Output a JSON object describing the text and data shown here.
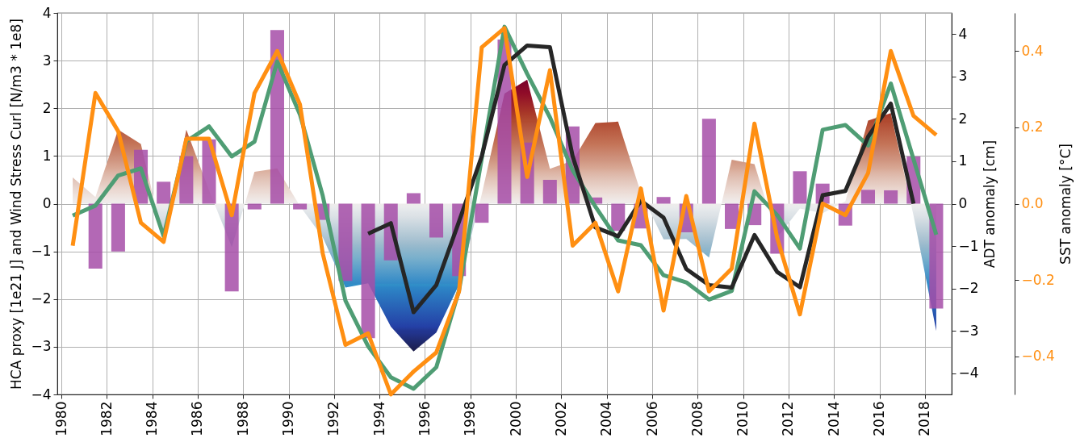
{
  "chart_data": {
    "type": "line",
    "ylabel": "HCA proxy [1e21 J] and Wind Stress Curl [N/m3 * 1e8]",
    "y2label": "ADT anomaly [cm]",
    "y3label": "SST anomaly [°C]",
    "x": [
      1980.5,
      1981.5,
      1982.5,
      1983.5,
      1984.5,
      1985.5,
      1986.5,
      1987.5,
      1988.5,
      1989.5,
      1990.5,
      1991.5,
      1992.5,
      1993.5,
      1994.5,
      1995.5,
      1996.5,
      1997.5,
      1998.5,
      1999.5,
      2000.5,
      2001.5,
      2002.5,
      2003.5,
      2004.5,
      2005.5,
      2006.5,
      2007.5,
      2008.5,
      2009.5,
      2010.5,
      2011.5,
      2012.5,
      2013.5,
      2014.5,
      2015.5,
      2016.5,
      2017.5,
      2018.5
    ],
    "xlim": [
      1980,
      2019
    ],
    "xticks": [
      1980,
      1982,
      1984,
      1986,
      1988,
      1990,
      1992,
      1994,
      1996,
      1998,
      2000,
      2002,
      2004,
      2006,
      2008,
      2010,
      2012,
      2014,
      2016,
      2018
    ],
    "ylim": [
      -4,
      4
    ],
    "yticks": [
      -4,
      -3,
      -2,
      -1,
      0,
      1,
      2,
      3,
      4
    ],
    "y2lim": [
      -4.5,
      4.5
    ],
    "y2ticks": [
      -4,
      -3,
      -2,
      -1,
      0,
      1,
      2,
      3,
      4
    ],
    "y3lim": [
      -0.5,
      0.5
    ],
    "y3ticks": [
      -0.4,
      -0.2,
      {
        "value": 0,
        "label": "0.0"
      },
      0.2,
      0.4
    ],
    "grid": true,
    "series": [
      {
        "type": "area",
        "values": [
          0.55,
          0.14,
          1.55,
          1.25,
          -0.77,
          1.55,
          0.28,
          -0.91,
          0.67,
          0.74,
          -0.05,
          -0.7,
          -1.76,
          -1.67,
          -2.58,
          -3.1,
          -2.7,
          -1.7,
          0.2,
          2.31,
          2.6,
          0.73,
          0.9,
          1.69,
          1.72,
          0.23,
          -0.75,
          -0.74,
          -1.13,
          0.92,
          0.83,
          -0.71,
          -0.1,
          -0.2,
          0.05,
          1.74,
          1.9,
          -0.25,
          -2.67
        ],
        "colors": [
          "#e0bfb2",
          "#eee4e0",
          "#b85a40",
          "#c47458",
          "#a6c0d0",
          "#b85a40",
          "#ebd9d2",
          "#94b8cc",
          "#dcb2a2",
          "#d8a894",
          "#ececec",
          "#adc5d3",
          "#2d85c6",
          "#338ac7",
          "#2440a6",
          "#1c1c48",
          "#22358f",
          "#3190c8",
          "#ede0da",
          "#900c28",
          "#78002a",
          "#d8a996",
          "#d09680",
          "#b24e34",
          "#b04a30",
          "#ecdcd6",
          "#a8c2d2",
          "#a9c3d2",
          "#7ab0cc",
          "#cf9480",
          "#d49e8a",
          "#acc4d3",
          "#e8eaec",
          "#dfe4e8",
          "#f0ebea",
          "#b04a30",
          "#a83828",
          "#dde2e6",
          "#22358f"
        ]
      },
      {
        "type": "bar",
        "color": "#a64da8",
        "values": [
          null,
          -1.36,
          -1.0,
          1.13,
          0.46,
          1.0,
          1.35,
          -1.84,
          -0.12,
          3.64,
          -0.12,
          -0.34,
          -1.62,
          -2.82,
          -1.19,
          0.22,
          -0.71,
          -1.52,
          -0.4,
          3.44,
          1.28,
          0.5,
          1.62,
          0.13,
          -0.57,
          -0.52,
          0.14,
          -0.6,
          1.78,
          -0.53,
          -0.45,
          -1.05,
          0.68,
          0.42,
          -0.46,
          0.29,
          0.28,
          0.99,
          -2.2
        ]
      },
      {
        "color": "#4f9d74",
        "values": [
          -0.25,
          -0.04,
          0.59,
          0.74,
          -0.68,
          1.31,
          1.62,
          0.99,
          1.3,
          2.98,
          1.87,
          0.17,
          -2.03,
          -2.99,
          -3.64,
          -3.88,
          -3.43,
          -1.82,
          0.95,
          3.71,
          2.72,
          1.81,
          0.7,
          -0.06,
          -0.77,
          -0.87,
          -1.5,
          -1.65,
          -2.01,
          -1.83,
          0.26,
          -0.24,
          -0.94,
          1.55,
          1.65,
          1.22,
          2.52,
          0.93,
          -0.65
        ]
      },
      {
        "color": "#262626",
        "axis": "y2",
        "values": [
          null,
          null,
          null,
          null,
          null,
          null,
          null,
          null,
          null,
          null,
          null,
          null,
          null,
          -0.71,
          -0.46,
          -2.56,
          -1.92,
          -0.42,
          1.12,
          3.27,
          3.73,
          3.69,
          1.12,
          -0.56,
          -0.77,
          0.07,
          -0.33,
          -1.54,
          -1.92,
          -1.98,
          -0.74,
          -1.61,
          -1.97,
          0.2,
          0.3,
          1.58,
          2.36,
          0.0,
          null
        ]
      },
      {
        "color": "#ff8f12",
        "axis": "y3",
        "values": [
          -0.11,
          0.29,
          0.19,
          -0.05,
          -0.1,
          0.17,
          0.17,
          -0.03,
          0.29,
          0.4,
          0.26,
          -0.13,
          -0.37,
          -0.34,
          -0.5,
          -0.44,
          -0.39,
          -0.23,
          0.41,
          0.46,
          0.07,
          0.35,
          -0.11,
          -0.05,
          -0.23,
          0.04,
          -0.28,
          0.02,
          -0.23,
          -0.17,
          0.21,
          -0.09,
          -0.29,
          0.0,
          -0.03,
          0.08,
          0.4,
          0.23,
          0.18
        ]
      }
    ]
  }
}
